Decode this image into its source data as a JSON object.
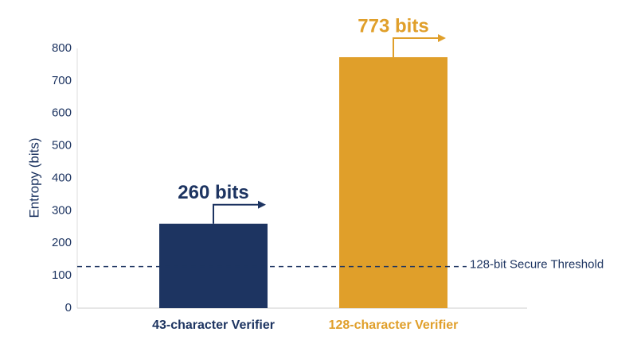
{
  "chart_data": {
    "type": "bar",
    "categories": [
      "43-character Verifier",
      "128-character Verifier"
    ],
    "values": [
      260,
      773
    ],
    "value_labels": [
      "260 bits",
      "773 bits"
    ],
    "colors": [
      "#1d3461",
      "#e09f2a"
    ],
    "ylabel": "Entropy (bits)",
    "ylim": [
      0,
      800
    ],
    "yticks": [
      0,
      100,
      200,
      300,
      400,
      500,
      600,
      700,
      800
    ],
    "grid": false,
    "threshold": {
      "value": 128,
      "label": "128-bit Secure Threshold",
      "color": "#1d3461"
    }
  }
}
